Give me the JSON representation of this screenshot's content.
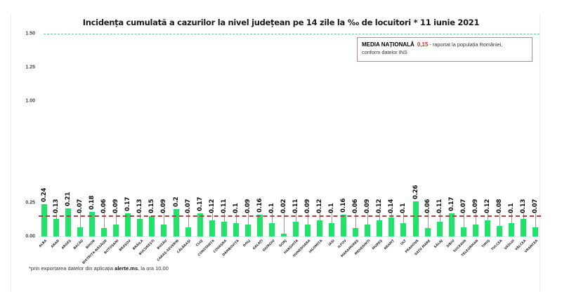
{
  "chart_data": {
    "type": "bar",
    "title": "Incidența cumulată a cazurilor la nivel județean pe 14 zile la ‰ de locuitori *  11 iunie 2021",
    "xlabel": "",
    "ylabel": "",
    "ylim": [
      0,
      1.5
    ],
    "yticks": [
      "0.00",
      "0.25",
      "1.00",
      "1.25",
      "1.50"
    ],
    "grid": false,
    "categories": [
      "ALBA",
      "ARAD",
      "ARGEȘ",
      "BACĂU",
      "BIHOR",
      "BISTRIȚA-NĂSĂUD",
      "BOTOȘANI",
      "BRAȘOV",
      "BRĂILA",
      "BUCUREȘTI",
      "BUZĂU",
      "CARAȘ-SEVERIN",
      "CĂLĂRAȘI",
      "CLUJ",
      "CONSTANȚA",
      "COVASNA",
      "DÂMBOVIȚA",
      "DOLJ",
      "GALAȚI",
      "GIURGIU",
      "GORJ",
      "HARGHITA",
      "HUNEDOARA",
      "IALOMIȚA",
      "IAȘI",
      "ILFOV",
      "MARAMUREȘ",
      "MEHEDINȚI",
      "MUREȘ",
      "NEAMȚ",
      "OLT",
      "PRAHOVA",
      "SATU MARE",
      "SĂLAJ",
      "SIBIU",
      "SUCEAVA",
      "TELEORMAN",
      "TIMIȘ",
      "TULCEA",
      "VASLUI",
      "VÂLCEA",
      "VRANCEA"
    ],
    "values": [
      0.24,
      0.13,
      0.21,
      0.07,
      0.18,
      0.06,
      0.09,
      0.17,
      0.13,
      0.15,
      0.09,
      0.2,
      0.07,
      0.17,
      0.12,
      0.11,
      0.1,
      0.09,
      0.16,
      0.1,
      0.02,
      0.11,
      0.09,
      0.12,
      0.1,
      0.16,
      0.06,
      0.09,
      0.12,
      0.14,
      0.1,
      0.26,
      0.06,
      0.11,
      0.17,
      0.07,
      0.09,
      0.12,
      0.08,
      0.1,
      0.13,
      0.07
    ],
    "value_labels": [
      "0.24",
      "0.13",
      "0.21",
      "0.07",
      "0.18",
      "0.06",
      "0.09",
      "0.17",
      "0.13",
      "0.15",
      "0.09",
      "0.2",
      "0.07",
      "0.17",
      "0.12",
      "0.11",
      "0.1",
      "0.09",
      "0.16",
      "0.1",
      "0.02",
      "0.11",
      "0.09",
      "0.12",
      "0.1",
      "0.16",
      "0.06",
      "0.09",
      "0.12",
      "0.14",
      "0.1",
      "0.26",
      "0.06",
      "0.11",
      "0.17",
      "0.07",
      "0.09",
      "0.12",
      "0.08",
      "0.1",
      "0.13",
      "0.07"
    ],
    "reference_lines": [
      {
        "name": "Media națională",
        "value": 0.15,
        "color": "#b73c3c",
        "style": "dashed"
      },
      {
        "name": "Prag",
        "value": 1.5,
        "color": "#6cc39a",
        "style": "dashed"
      }
    ],
    "bar_color": "#22e36a"
  },
  "legend": {
    "label": "MEDIA NAȚIONALĂ",
    "value": "0,15",
    "text_line1": " - raportat la populația României,",
    "text_line2": "conform datelor INS"
  },
  "footer": {
    "prefix": "*prin exportarea datelor din aplicația ",
    "app": "alerte.ms",
    "suffix": ", la ora 10.00"
  }
}
